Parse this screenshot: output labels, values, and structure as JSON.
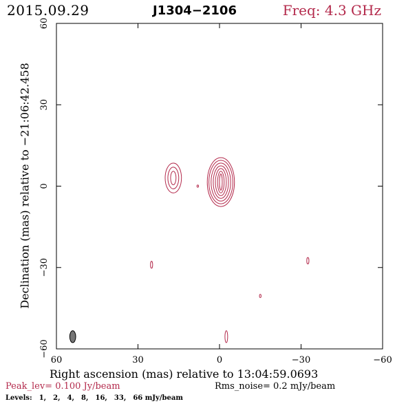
{
  "header": {
    "date": "2015.09.29",
    "source": "J1304−2106",
    "frequency": "Freq: 4.3 GHz"
  },
  "colors": {
    "contour": "#b3294b",
    "beam": "#777777",
    "axis": "#000000"
  },
  "chart_data": {
    "type": "contour",
    "xlabel": "Right ascension (mas) relative to 13:04:59.0693",
    "ylabel": "Declination (mas) relative to −21:06:42.458",
    "xlim": [
      60,
      -60
    ],
    "ylim": [
      -60,
      60
    ],
    "x_ticks": [
      60,
      30,
      0,
      -30,
      -60
    ],
    "y_ticks": [
      60,
      30,
      0,
      -30,
      -60
    ],
    "x_tick_labels": [
      "60",
      "30",
      "0",
      "−30",
      "−60"
    ],
    "y_tick_labels": [
      "60",
      "30",
      "0",
      "−30",
      "−60"
    ],
    "peak_level": "Peak_lev=  0.100 Jy/beam",
    "rms_noise": "Rms_noise=  0.2 mJy/beam",
    "levels_label": "Levels:",
    "levels": [
      "1,",
      "2,",
      "4,",
      "8,",
      "16,",
      "33,",
      "66 mJy/beam"
    ],
    "components": [
      {
        "name": "core",
        "x": -0.5,
        "y": 1.5,
        "rings": [
          [
            0.5,
            3.0
          ],
          [
            1.2,
            4.0
          ],
          [
            2.0,
            5.0
          ],
          [
            2.8,
            6.0
          ],
          [
            3.6,
            7.0
          ],
          [
            4.4,
            8.0
          ],
          [
            5.0,
            9.0
          ]
        ]
      },
      {
        "name": "jet",
        "x": 17.0,
        "y": 3.0,
        "rings": [
          [
            1.0,
            2.5
          ],
          [
            2.0,
            4.0
          ],
          [
            3.0,
            5.5
          ]
        ]
      }
    ],
    "noise_features": [
      {
        "x": 8.0,
        "y": 0.0,
        "rx": 0.3,
        "ry": 0.4
      },
      {
        "x": 25.0,
        "y": -29.0,
        "rx": 0.4,
        "ry": 1.3
      },
      {
        "x": -32.5,
        "y": -27.5,
        "rx": 0.4,
        "ry": 1.2
      },
      {
        "x": -15.0,
        "y": -40.5,
        "rx": 0.3,
        "ry": 0.6
      },
      {
        "x": -2.5,
        "y": -55.5,
        "rx": 0.5,
        "ry": 2.2
      }
    ],
    "beam": {
      "x": 54.0,
      "y": -55.5,
      "rx": 1.1,
      "ry": 2.2
    }
  }
}
